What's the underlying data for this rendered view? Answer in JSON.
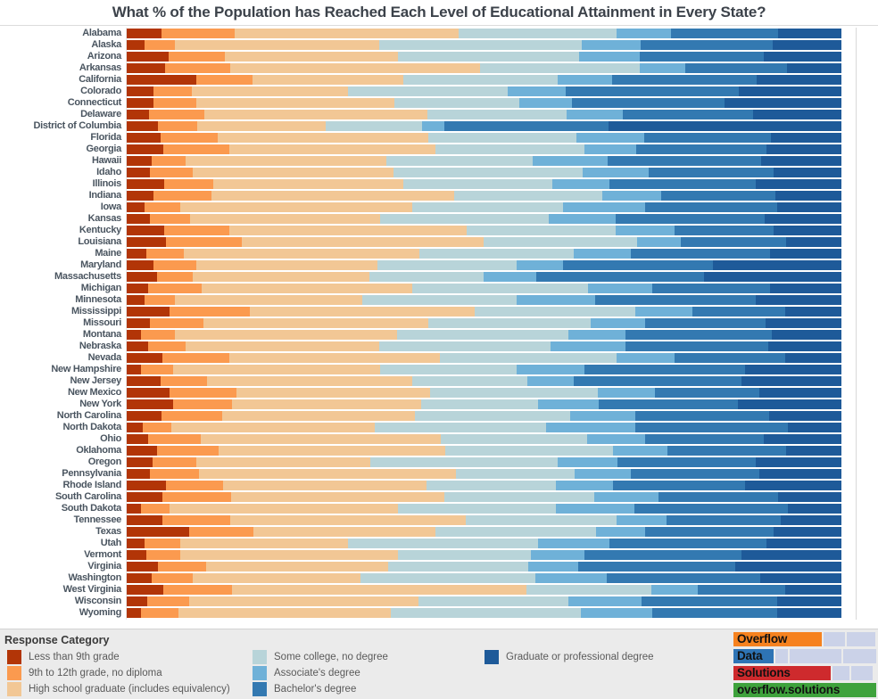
{
  "title": "What % of the Population has Reached Each Level of Educational Attainment in Every State?",
  "colors": {
    "less9": "#B23507",
    "g9to12": "#FB9A4F",
    "hsgrad": "#F2C795",
    "somecollege": "#B8D4D9",
    "associate": "#6FB1D8",
    "bachelor": "#3379B1",
    "graduate": "#1E5A99"
  },
  "chart_data": {
    "type": "bar",
    "orientation": "horizontal",
    "stacked": true,
    "unit": "percent",
    "xlim": [
      0,
      100
    ],
    "grid": false,
    "title": "What % of the Population has Reached Each Level of Educational Attainment in Every State?",
    "categories": [
      "Alabama",
      "Alaska",
      "Arizona",
      "Arkansas",
      "California",
      "Colorado",
      "Connecticut",
      "Delaware",
      "District of Columbia",
      "Florida",
      "Georgia",
      "Hawaii",
      "Idaho",
      "Illinois",
      "Indiana",
      "Iowa",
      "Kansas",
      "Kentucky",
      "Louisiana",
      "Maine",
      "Maryland",
      "Massachusetts",
      "Michigan",
      "Minnesota",
      "Mississippi",
      "Missouri",
      "Montana",
      "Nebraska",
      "Nevada",
      "New Hampshire",
      "New Jersey",
      "New Mexico",
      "New York",
      "North Carolina",
      "North Dakota",
      "Ohio",
      "Oklahoma",
      "Oregon",
      "Pennsylvania",
      "Rhode Island",
      "South Carolina",
      "South Dakota",
      "Tennessee",
      "Texas",
      "Utah",
      "Vermont",
      "Virginia",
      "Washington",
      "West Virginia",
      "Wisconsin",
      "Wyoming"
    ],
    "series": [
      {
        "name": "Less than 9th grade",
        "color": "less9",
        "values": [
          4.9,
          2.5,
          5.9,
          5.4,
          9.7,
          3.8,
          3.8,
          3.1,
          4.4,
          4.8,
          5.1,
          3.5,
          3.3,
          5.2,
          3.8,
          2.5,
          3.2,
          5.3,
          5.5,
          2.8,
          3.8,
          4.3,
          3.0,
          2.5,
          6.0,
          3.3,
          2.0,
          3.0,
          5.0,
          2.0,
          4.8,
          6.0,
          6.5,
          4.9,
          2.2,
          3.0,
          4.2,
          3.6,
          3.2,
          5.5,
          5.0,
          2.0,
          5.0,
          8.7,
          2.5,
          2.7,
          4.4,
          3.5,
          5.1,
          2.9,
          2.0
        ]
      },
      {
        "name": "9th to 12th grade, no diploma",
        "color": "g9to12",
        "values": [
          10.2,
          4.3,
          7.8,
          9.1,
          7.9,
          5.3,
          5.9,
          7.7,
          5.5,
          7.9,
          9.3,
          4.8,
          6.0,
          6.9,
          8.0,
          5.0,
          5.7,
          9.0,
          10.6,
          5.2,
          5.9,
          5.0,
          7.5,
          4.2,
          11.2,
          7.5,
          4.8,
          5.3,
          9.3,
          4.5,
          6.4,
          9.4,
          8.2,
          8.4,
          4.0,
          7.4,
          8.6,
          6.2,
          6.9,
          8.0,
          9.6,
          4.0,
          9.5,
          9.0,
          5.0,
          4.8,
          6.7,
          5.7,
          9.6,
          5.9,
          5.2
        ]
      },
      {
        "name": "High school graduate (includes equivalency)",
        "color": "hsgrad",
        "values": [
          31.4,
          28.5,
          24.3,
          34.9,
          21.1,
          21.9,
          27.7,
          31.3,
          18.0,
          29.5,
          28.8,
          28.0,
          28.0,
          26.6,
          34.0,
          32.5,
          26.5,
          33.3,
          33.9,
          33.0,
          25.4,
          24.7,
          29.5,
          26.3,
          31.5,
          31.4,
          31.0,
          27.0,
          29.5,
          29.0,
          28.8,
          27.0,
          26.5,
          27.0,
          28.5,
          33.5,
          31.8,
          24.3,
          36.0,
          28.5,
          29.8,
          32.0,
          33.0,
          25.5,
          23.5,
          30.5,
          25.5,
          23.5,
          41.2,
          32.0,
          29.8
        ]
      },
      {
        "name": "Some college, no degree",
        "color": "somecollege",
        "values": [
          22.1,
          28.4,
          25.3,
          22.4,
          21.6,
          22.3,
          17.5,
          19.5,
          13.4,
          20.7,
          20.8,
          20.5,
          26.5,
          20.8,
          20.7,
          21.0,
          23.7,
          20.8,
          21.4,
          21.5,
          19.4,
          16.0,
          24.5,
          21.5,
          22.5,
          22.7,
          24.0,
          24.0,
          24.7,
          19.0,
          16.0,
          23.5,
          16.3,
          21.7,
          24.0,
          20.5,
          23.5,
          26.2,
          16.6,
          18.0,
          21.0,
          22.0,
          21.0,
          22.5,
          26.5,
          18.5,
          19.6,
          24.5,
          17.5,
          21.0,
          26.5
        ]
      },
      {
        "name": "Associate's degree",
        "color": "associate",
        "values": [
          7.6,
          8.2,
          8.5,
          6.3,
          7.6,
          8.1,
          7.4,
          7.8,
          3.1,
          9.5,
          7.3,
          10.5,
          9.2,
          8.0,
          8.3,
          11.5,
          9.3,
          8.2,
          6.1,
          8.0,
          6.6,
          7.3,
          9.0,
          11.0,
          8.0,
          7.7,
          8.0,
          10.5,
          8.2,
          9.5,
          6.5,
          8.0,
          8.5,
          9.2,
          12.5,
          8.2,
          7.6,
          8.4,
          7.8,
          8.0,
          9.0,
          11.0,
          7.0,
          6.8,
          10.0,
          7.5,
          7.0,
          10.0,
          6.5,
          10.2,
          10.0
        ]
      },
      {
        "name": "Bachelor's degree",
        "color": "bachelor",
        "values": [
          14.9,
          18.5,
          17.4,
          14.3,
          20.2,
          24.2,
          21.3,
          18.3,
          23.0,
          17.7,
          18.2,
          21.5,
          17.5,
          20.5,
          16.0,
          18.5,
          20.9,
          13.9,
          14.8,
          19.5,
          20.9,
          23.5,
          16.5,
          22.5,
          13.0,
          16.8,
          20.5,
          20.0,
          15.4,
          22.5,
          23.5,
          14.6,
          19.5,
          18.7,
          21.3,
          16.5,
          16.6,
          19.3,
          18.0,
          18.5,
          16.8,
          21.5,
          16.0,
          18.0,
          22.0,
          22.0,
          22.0,
          21.5,
          12.2,
          19.0,
          17.5
        ]
      },
      {
        "name": "Graduate or professional degree",
        "color": "graduate",
        "values": [
          8.9,
          9.6,
          10.8,
          7.6,
          11.9,
          14.4,
          16.4,
          12.3,
          32.6,
          9.9,
          10.5,
          11.2,
          9.5,
          12.0,
          9.2,
          9.0,
          10.7,
          9.5,
          7.7,
          10.0,
          18.0,
          19.2,
          10.0,
          12.0,
          7.8,
          10.6,
          9.7,
          10.2,
          7.9,
          13.5,
          14.0,
          11.5,
          14.5,
          10.1,
          7.5,
          10.9,
          7.7,
          12.0,
          11.5,
          13.5,
          8.8,
          7.5,
          8.5,
          9.5,
          10.5,
          14.0,
          14.8,
          11.3,
          7.9,
          9.0,
          9.0
        ]
      }
    ]
  },
  "legend": {
    "title": "Response Category",
    "items": [
      {
        "label": "Less than 9th grade",
        "color": "less9",
        "col": 0,
        "row": 0
      },
      {
        "label": "9th to 12th grade, no diploma",
        "color": "g9to12",
        "col": 0,
        "row": 1
      },
      {
        "label": "High school graduate (includes equivalency)",
        "color": "hsgrad",
        "col": 0,
        "row": 2
      },
      {
        "label": "Some college, no degree",
        "color": "somecollege",
        "col": 1,
        "row": 0
      },
      {
        "label": "Associate's degree",
        "color": "associate",
        "col": 1,
        "row": 1
      },
      {
        "label": "Bachelor's degree",
        "color": "bachelor",
        "col": 1,
        "row": 2
      },
      {
        "label": "Graduate or professional degree",
        "color": "graduate",
        "col": 2,
        "row": 0
      }
    ]
  },
  "logo": {
    "colors": {
      "orange": "#F6821F",
      "blue": "#2E74B5",
      "red": "#CE2A2D",
      "green": "#3EA23C",
      "lavender": "#CBD2E8"
    },
    "rows": [
      {
        "segments": [
          {
            "color": "orange",
            "width": 62,
            "label": "Overflow"
          },
          {
            "color": "lavender",
            "width": 15
          },
          {
            "color": "lavender",
            "width": 20
          }
        ]
      },
      {
        "segments": [
          {
            "color": "blue",
            "width": 28,
            "label": "Data"
          },
          {
            "color": "lavender",
            "width": 9
          },
          {
            "color": "lavender",
            "width": 36
          },
          {
            "color": "lavender",
            "width": 23
          }
        ]
      },
      {
        "segments": [
          {
            "color": "red",
            "width": 68,
            "label": "Solutions"
          },
          {
            "color": "lavender",
            "width": 12
          },
          {
            "color": "lavender",
            "width": 15
          }
        ]
      },
      {
        "segments": [
          {
            "color": "green",
            "width": 100,
            "label": "overflow.solutions"
          }
        ]
      }
    ]
  }
}
